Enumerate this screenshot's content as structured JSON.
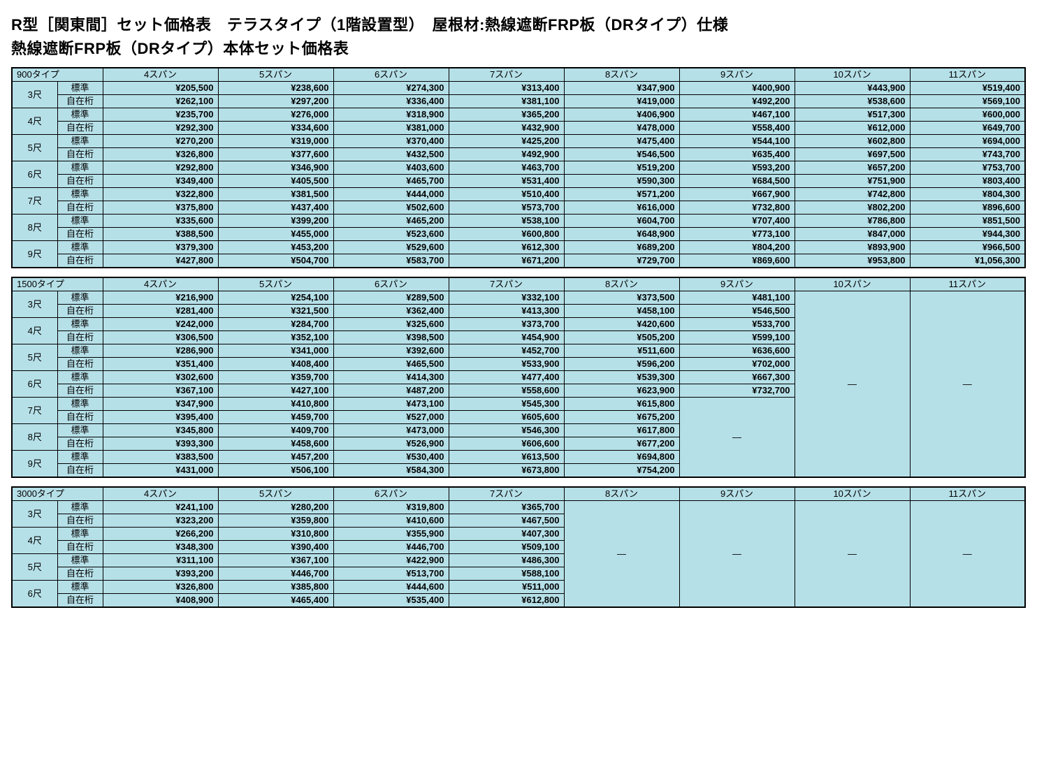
{
  "title1": "R型［関東間］セット価格表　テラスタイプ（1階設置型）　屋根材:熱線遮断FRP板（DRタイプ）仕様",
  "title2": "熱線遮断FRP板（DRタイプ）本体セット価格表",
  "columns": [
    "4スパン",
    "5スパン",
    "6スパン",
    "7スパン",
    "8スパン",
    "9スパン",
    "10スパン",
    "11スパン"
  ],
  "sub_labels": [
    "標準",
    "自在桁"
  ],
  "dash": "―",
  "colors": {
    "cell_bg": "#b6e0e8",
    "border": "#000000",
    "page_bg": "#ffffff"
  },
  "tables": [
    {
      "type_label": "900タイプ",
      "sizes": [
        "3尺",
        "4尺",
        "5尺",
        "6尺",
        "7尺",
        "8尺",
        "9尺"
      ],
      "data": [
        [
          [
            "¥205,500",
            "¥238,600",
            "¥274,300",
            "¥313,400",
            "¥347,900",
            "¥400,900",
            "¥443,900",
            "¥519,400"
          ],
          [
            "¥262,100",
            "¥297,200",
            "¥336,400",
            "¥381,100",
            "¥419,000",
            "¥492,200",
            "¥538,600",
            "¥569,100"
          ]
        ],
        [
          [
            "¥235,700",
            "¥276,000",
            "¥318,900",
            "¥365,200",
            "¥406,900",
            "¥467,100",
            "¥517,300",
            "¥600,000"
          ],
          [
            "¥292,300",
            "¥334,600",
            "¥381,000",
            "¥432,900",
            "¥478,000",
            "¥558,400",
            "¥612,000",
            "¥649,700"
          ]
        ],
        [
          [
            "¥270,200",
            "¥319,000",
            "¥370,400",
            "¥425,200",
            "¥475,400",
            "¥544,100",
            "¥602,800",
            "¥694,000"
          ],
          [
            "¥326,800",
            "¥377,600",
            "¥432,500",
            "¥492,900",
            "¥546,500",
            "¥635,400",
            "¥697,500",
            "¥743,700"
          ]
        ],
        [
          [
            "¥292,800",
            "¥346,900",
            "¥403,600",
            "¥463,700",
            "¥519,200",
            "¥593,200",
            "¥657,200",
            "¥753,700"
          ],
          [
            "¥349,400",
            "¥405,500",
            "¥465,700",
            "¥531,400",
            "¥590,300",
            "¥684,500",
            "¥751,900",
            "¥803,400"
          ]
        ],
        [
          [
            "¥322,800",
            "¥381,500",
            "¥444,000",
            "¥510,400",
            "¥571,200",
            "¥667,900",
            "¥742,800",
            "¥804,300"
          ],
          [
            "¥375,800",
            "¥437,400",
            "¥502,600",
            "¥573,700",
            "¥616,000",
            "¥732,800",
            "¥802,200",
            "¥896,600"
          ]
        ],
        [
          [
            "¥335,600",
            "¥399,200",
            "¥465,200",
            "¥538,100",
            "¥604,700",
            "¥707,400",
            "¥786,800",
            "¥851,500"
          ],
          [
            "¥388,500",
            "¥455,000",
            "¥523,600",
            "¥600,800",
            "¥648,900",
            "¥773,100",
            "¥847,000",
            "¥944,300"
          ]
        ],
        [
          [
            "¥379,300",
            "¥453,200",
            "¥529,600",
            "¥612,300",
            "¥689,200",
            "¥804,200",
            "¥893,900",
            "¥966,500"
          ],
          [
            "¥427,800",
            "¥504,700",
            "¥583,700",
            "¥671,200",
            "¥729,700",
            "¥869,600",
            "¥953,800",
            "¥1,056,300"
          ]
        ]
      ],
      "merges": []
    },
    {
      "type_label": "1500タイプ",
      "sizes": [
        "3尺",
        "4尺",
        "5尺",
        "6尺",
        "7尺",
        "8尺",
        "9尺"
      ],
      "data": [
        [
          [
            "¥216,900",
            "¥254,100",
            "¥289,500",
            "¥332,100",
            "¥373,500",
            "¥481,100",
            null,
            null
          ],
          [
            "¥281,400",
            "¥321,500",
            "¥362,400",
            "¥413,300",
            "¥458,100",
            "¥546,500",
            null,
            null
          ]
        ],
        [
          [
            "¥242,000",
            "¥284,700",
            "¥325,600",
            "¥373,700",
            "¥420,600",
            "¥533,700",
            null,
            null
          ],
          [
            "¥306,500",
            "¥352,100",
            "¥398,500",
            "¥454,900",
            "¥505,200",
            "¥599,100",
            null,
            null
          ]
        ],
        [
          [
            "¥286,900",
            "¥341,000",
            "¥392,600",
            "¥452,700",
            "¥511,600",
            "¥636,600",
            null,
            null
          ],
          [
            "¥351,400",
            "¥408,400",
            "¥465,500",
            "¥533,900",
            "¥596,200",
            "¥702,000",
            null,
            null
          ]
        ],
        [
          [
            "¥302,600",
            "¥359,700",
            "¥414,300",
            "¥477,400",
            "¥539,300",
            "¥667,300",
            null,
            null
          ],
          [
            "¥367,100",
            "¥427,100",
            "¥487,200",
            "¥558,600",
            "¥623,900",
            "¥732,700",
            null,
            null
          ]
        ],
        [
          [
            "¥347,900",
            "¥410,800",
            "¥473,100",
            "¥545,300",
            "¥615,800",
            null,
            null,
            null
          ],
          [
            "¥395,400",
            "¥459,700",
            "¥527,000",
            "¥605,600",
            "¥675,200",
            null,
            null,
            null
          ]
        ],
        [
          [
            "¥345,800",
            "¥409,700",
            "¥473,000",
            "¥546,300",
            "¥617,800",
            null,
            null,
            null
          ],
          [
            "¥393,300",
            "¥458,600",
            "¥526,900",
            "¥606,600",
            "¥677,200",
            null,
            null,
            null
          ]
        ],
        [
          [
            "¥383,500",
            "¥457,200",
            "¥530,400",
            "¥613,500",
            "¥694,800",
            null,
            null,
            null
          ],
          [
            "¥431,000",
            "¥506,100",
            "¥584,300",
            "¥673,800",
            "¥754,200",
            null,
            null,
            null
          ]
        ]
      ],
      "merges": [
        {
          "col": 6,
          "row_start": 0,
          "row_span": 14,
          "col_span": 1
        },
        {
          "col": 7,
          "row_start": 0,
          "row_span": 14,
          "col_span": 1
        },
        {
          "col": 5,
          "row_start": 8,
          "row_span": 6,
          "col_span": 1
        }
      ]
    },
    {
      "type_label": "3000タイプ",
      "sizes": [
        "3尺",
        "4尺",
        "5尺",
        "6尺"
      ],
      "data": [
        [
          [
            "¥241,100",
            "¥280,200",
            "¥319,800",
            "¥365,700",
            null,
            null,
            null,
            null
          ],
          [
            "¥323,200",
            "¥359,800",
            "¥410,600",
            "¥467,500",
            null,
            null,
            null,
            null
          ]
        ],
        [
          [
            "¥266,200",
            "¥310,800",
            "¥355,900",
            "¥407,300",
            null,
            null,
            null,
            null
          ],
          [
            "¥348,300",
            "¥390,400",
            "¥446,700",
            "¥509,100",
            null,
            null,
            null,
            null
          ]
        ],
        [
          [
            "¥311,100",
            "¥367,100",
            "¥422,900",
            "¥486,300",
            null,
            null,
            null,
            null
          ],
          [
            "¥393,200",
            "¥446,700",
            "¥513,700",
            "¥588,100",
            null,
            null,
            null,
            null
          ]
        ],
        [
          [
            "¥326,800",
            "¥385,800",
            "¥444,600",
            "¥511,000",
            null,
            null,
            null,
            null
          ],
          [
            "¥408,900",
            "¥465,400",
            "¥535,400",
            "¥612,800",
            null,
            null,
            null,
            null
          ]
        ]
      ],
      "merges": [
        {
          "col": 4,
          "row_start": 0,
          "row_span": 8,
          "col_span": 1
        },
        {
          "col": 5,
          "row_start": 0,
          "row_span": 8,
          "col_span": 1
        },
        {
          "col": 6,
          "row_start": 0,
          "row_span": 8,
          "col_span": 1
        },
        {
          "col": 7,
          "row_start": 0,
          "row_span": 8,
          "col_span": 1
        }
      ]
    }
  ]
}
